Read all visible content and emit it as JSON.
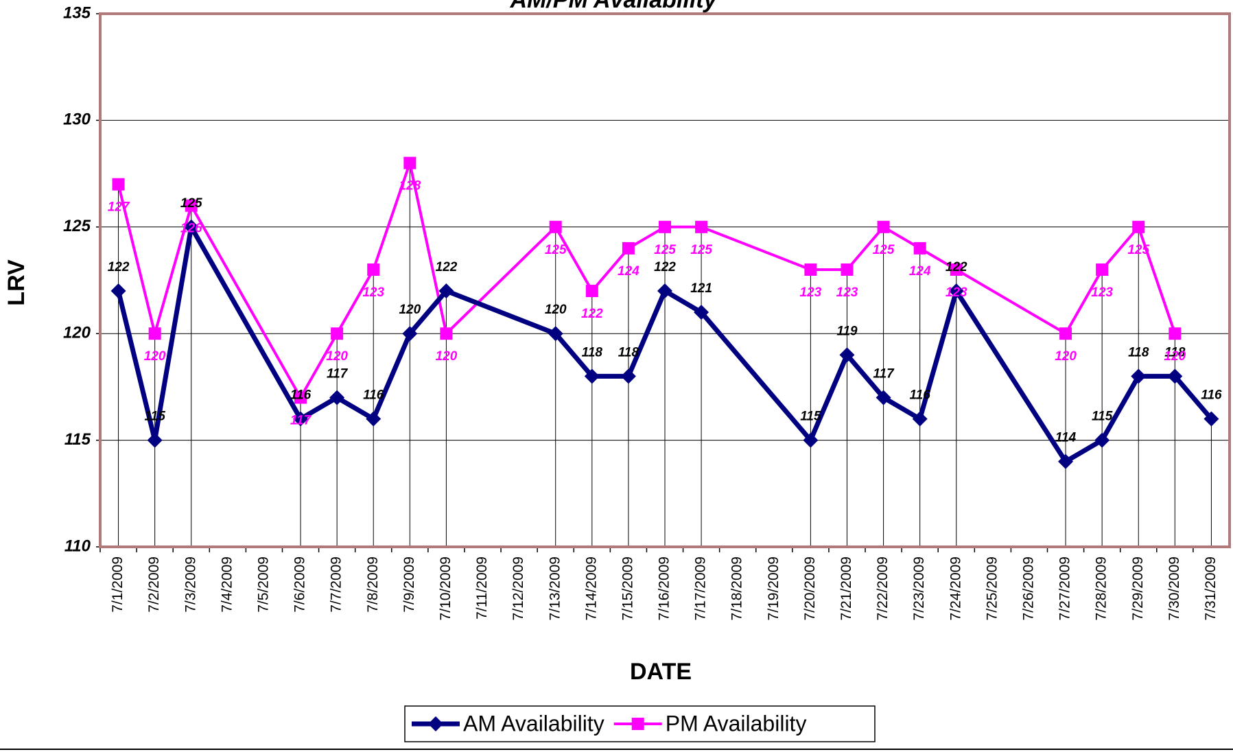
{
  "chart_data": {
    "type": "line",
    "title": "AM/PM Availability",
    "xlabel": "DATE",
    "ylabel": "LRV",
    "categories": [
      "7/1/2009",
      "7/2/2009",
      "7/3/2009",
      "7/4/2009",
      "7/5/2009",
      "7/6/2009",
      "7/7/2009",
      "7/8/2009",
      "7/9/2009",
      "7/10/2009",
      "7/11/2009",
      "7/12/2009",
      "7/13/2009",
      "7/14/2009",
      "7/15/2009",
      "7/16/2009",
      "7/17/2009",
      "7/18/2009",
      "7/19/2009",
      "7/20/2009",
      "7/21/2009",
      "7/22/2009",
      "7/23/2009",
      "7/24/2009",
      "7/25/2009",
      "7/26/2009",
      "7/27/2009",
      "7/28/2009",
      "7/29/2009",
      "7/30/2009",
      "7/31/2009"
    ],
    "series": [
      {
        "name": "AM Availability",
        "color": "#000080",
        "marker": "diamond",
        "label_color": "#000000",
        "label_position": "above",
        "values": [
          122,
          115,
          125,
          null,
          null,
          116,
          117,
          116,
          120,
          122,
          null,
          null,
          120,
          118,
          118,
          122,
          121,
          null,
          null,
          115,
          119,
          117,
          116,
          122,
          null,
          null,
          114,
          115,
          118,
          118,
          116
        ]
      },
      {
        "name": "PM Availability",
        "color": "#ff00ff",
        "marker": "square",
        "label_color": "#ff00ff",
        "label_position": "below",
        "values": [
          127,
          120,
          126,
          null,
          null,
          117,
          120,
          123,
          128,
          120,
          null,
          null,
          125,
          122,
          124,
          125,
          125,
          null,
          null,
          123,
          123,
          125,
          124,
          123,
          null,
          null,
          120,
          123,
          125,
          120,
          null
        ]
      }
    ],
    "ylim": [
      110,
      135
    ],
    "yticks": [
      110,
      115,
      120,
      125,
      130,
      135
    ],
    "grid": true,
    "drop_lines": true,
    "legend": "bottom"
  }
}
